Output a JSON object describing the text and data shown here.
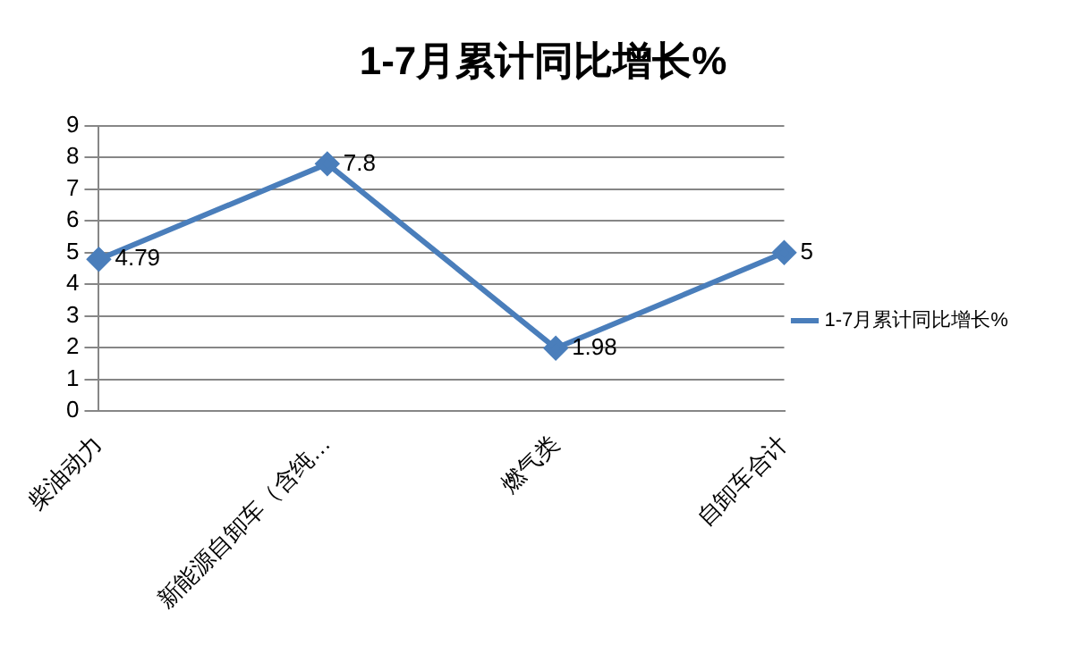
{
  "chart_data": {
    "type": "line",
    "title": "1-7月累计同比增长%",
    "categories": [
      "柴油动力",
      "新能源自卸车（含纯…",
      "燃气类",
      "自卸车合计"
    ],
    "series": [
      {
        "name": "1-7月累计同比增长%",
        "color": "#4a7ebb",
        "values": [
          4.79,
          7.8,
          1.98,
          5
        ]
      }
    ],
    "ylim": [
      0,
      9
    ],
    "yticks": [
      0,
      1,
      2,
      3,
      4,
      5,
      6,
      7,
      8,
      9
    ],
    "grid": "y",
    "legend": "right",
    "marker": "diamond",
    "line_style": "solid",
    "data_labels": true
  }
}
